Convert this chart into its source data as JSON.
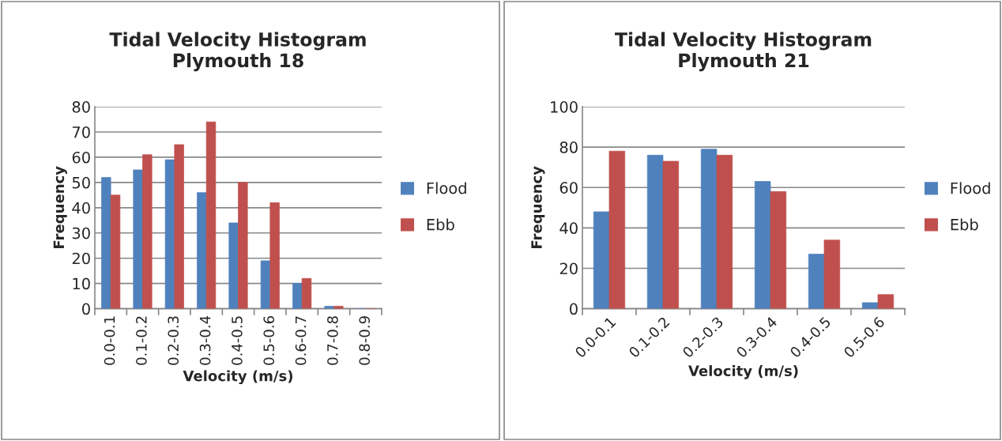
{
  "chart_data": [
    {
      "type": "bar",
      "title": "Tidal Velocity Histogram\nPlymouth 18",
      "xlabel": "Velocity (m/s)",
      "ylabel": "Frequency",
      "categories": [
        "0.0-0.1",
        "0.1-0.2",
        "0.2-0.3",
        "0.3-0.4",
        "0.4-0.5",
        "0.5-0.6",
        "0.6-0.7",
        "0.7-0.8",
        "0.8-0.9"
      ],
      "series": [
        {
          "name": "Flood",
          "color": "#4f81bd",
          "values": [
            52,
            55,
            59,
            46,
            34,
            19,
            10,
            1,
            0
          ]
        },
        {
          "name": "Ebb",
          "color": "#c0504d",
          "values": [
            45,
            61,
            65,
            74,
            50,
            42,
            12,
            1,
            0
          ]
        }
      ],
      "ylim": [
        0,
        80
      ],
      "yticks": [
        0,
        10,
        20,
        30,
        40,
        50,
        60,
        70,
        80
      ],
      "grid": "y",
      "legend": "right"
    },
    {
      "type": "bar",
      "title": "Tidal Velocity Histogram\nPlymouth 21",
      "xlabel": "Velocity (m/s)",
      "ylabel": "Frequency",
      "categories": [
        "0.0-0.1",
        "0.1-0.2",
        "0.2-0.3",
        "0.3-0.4",
        "0.4-0.5",
        "0.5-0.6"
      ],
      "series": [
        {
          "name": "Flood",
          "color": "#4f81bd",
          "values": [
            48,
            76,
            79,
            63,
            27,
            3
          ]
        },
        {
          "name": "Ebb",
          "color": "#c0504d",
          "values": [
            78,
            73,
            76,
            58,
            34,
            7
          ]
        }
      ],
      "ylim": [
        0,
        100
      ],
      "yticks": [
        0,
        20,
        40,
        60,
        80,
        100
      ],
      "grid": "y",
      "legend": "right"
    }
  ]
}
